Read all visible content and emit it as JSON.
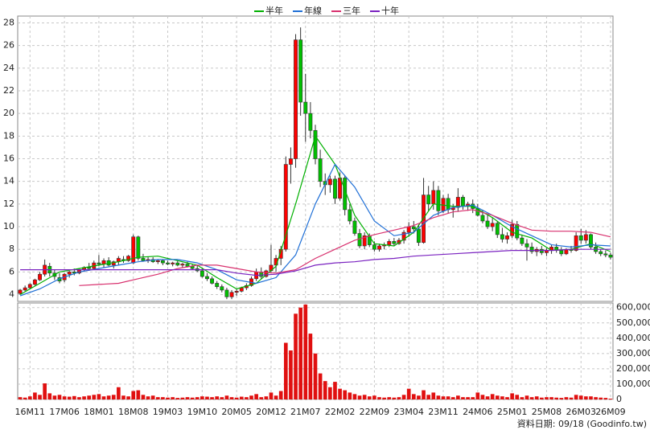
{
  "chart_data": {
    "type": "candlestick",
    "legend_position": "top",
    "grid": true,
    "footnote": "資料日期: 09/18 (Goodinfo.tw)",
    "categories": [
      null,
      null,
      "16M11",
      null,
      null,
      null,
      null,
      null,
      null,
      "17M06",
      null,
      null,
      null,
      null,
      null,
      null,
      "18M01",
      null,
      null,
      null,
      null,
      null,
      null,
      "18M08",
      null,
      null,
      null,
      null,
      null,
      null,
      "19M03",
      null,
      null,
      null,
      null,
      null,
      null,
      "19M10",
      null,
      null,
      null,
      null,
      null,
      null,
      "20M05",
      null,
      null,
      null,
      null,
      null,
      null,
      "20M12",
      null,
      null,
      null,
      null,
      null,
      null,
      "21M07",
      null,
      null,
      null,
      null,
      null,
      null,
      "22M02",
      null,
      null,
      null,
      null,
      null,
      null,
      "22M09",
      null,
      null,
      null,
      null,
      null,
      null,
      "23M04",
      null,
      null,
      null,
      null,
      null,
      null,
      "23M11",
      null,
      null,
      null,
      null,
      null,
      null,
      "24M06",
      null,
      null,
      null,
      null,
      null,
      null,
      "25M01",
      null,
      null,
      null,
      null,
      null,
      null,
      "25M08",
      null,
      null,
      null,
      null,
      null,
      null,
      "26M03",
      null,
      null,
      null,
      null,
      null,
      "26M09"
    ],
    "open": [
      4.1,
      4.4,
      4.6,
      4.9,
      5.3,
      5.8,
      6.5,
      5.9,
      5.5,
      5.3,
      5.8,
      6.0,
      5.9,
      6.2,
      6.4,
      6.3,
      6.8,
      6.7,
      7.0,
      6.6,
      6.9,
      7.1,
      7.0,
      6.8,
      9.1,
      7.2,
      7.0,
      7.1,
      6.9,
      7.0,
      6.8,
      6.7,
      6.8,
      6.6,
      6.7,
      6.5,
      6.3,
      6.1,
      5.6,
      5.4,
      5.0,
      4.7,
      4.4,
      3.8,
      4.2,
      4.3,
      4.6,
      4.8,
      5.4,
      6.0,
      5.6,
      6.1,
      6.6,
      7.2,
      8.0,
      15.5,
      16.0,
      26.5,
      21.0,
      20.0,
      18.5,
      16.0,
      14.0,
      13.7,
      14.2,
      12.5,
      14.3,
      11.5,
      10.5,
      9.4,
      8.3,
      9.2,
      8.4,
      8.0,
      8.3,
      8.4,
      8.7,
      8.5,
      8.8,
      9.5,
      10.0,
      9.8,
      8.6,
      12.8,
      12.0,
      13.2,
      11.4,
      12.5,
      11.5,
      11.7,
      12.6,
      11.8,
      12.0,
      11.6,
      11.0,
      10.5,
      10.0,
      10.3,
      9.3,
      8.9,
      9.2,
      10.2,
      9.0,
      8.5,
      8.2,
      7.8,
      8.0,
      7.7,
      7.9,
      8.2,
      7.9,
      7.6,
      8.0,
      7.9,
      9.2,
      8.8,
      9.3,
      8.2,
      7.8,
      7.6,
      7.5
    ],
    "high": [
      4.5,
      4.8,
      5.0,
      5.4,
      6.0,
      7.1,
      6.8,
      6.2,
      5.9,
      5.9,
      6.1,
      6.3,
      6.3,
      6.5,
      6.8,
      7.0,
      7.5,
      7.2,
      7.3,
      7.0,
      7.4,
      7.4,
      7.5,
      9.3,
      9.2,
      7.6,
      7.3,
      7.3,
      7.1,
      7.1,
      7.0,
      6.9,
      7.0,
      6.8,
      6.9,
      6.7,
      6.6,
      6.3,
      5.9,
      5.6,
      5.2,
      4.9,
      4.6,
      4.4,
      4.5,
      4.7,
      5.0,
      5.6,
      6.3,
      6.4,
      6.2,
      8.4,
      7.5,
      8.3,
      16.2,
      17.0,
      27.0,
      27.6,
      23.5,
      21.0,
      19.0,
      16.8,
      14.7,
      14.5,
      14.5,
      14.8,
      14.5,
      12.0,
      10.8,
      9.8,
      9.5,
      9.4,
      8.7,
      8.5,
      8.6,
      8.9,
      9.0,
      9.0,
      9.7,
      10.4,
      10.5,
      10.2,
      14.3,
      13.6,
      14.0,
      13.6,
      12.8,
      12.9,
      12.0,
      13.4,
      12.8,
      12.2,
      12.4,
      12.0,
      11.5,
      11.0,
      10.8,
      10.5,
      9.9,
      9.5,
      10.6,
      10.5,
      9.3,
      8.9,
      8.6,
      8.2,
      8.3,
      8.1,
      8.4,
      8.5,
      8.2,
      8.1,
      8.3,
      9.5,
      9.8,
      9.7,
      9.4,
      8.6,
      8.0,
      7.9,
      7.7
    ],
    "low": [
      4.0,
      4.3,
      4.5,
      4.8,
      5.2,
      5.6,
      5.6,
      5.3,
      5.0,
      5.1,
      5.5,
      5.7,
      5.8,
      6.0,
      6.1,
      6.2,
      6.5,
      6.4,
      6.5,
      6.3,
      6.6,
      6.8,
      6.9,
      6.7,
      7.0,
      6.9,
      6.8,
      6.8,
      6.7,
      6.6,
      6.6,
      6.5,
      6.5,
      6.4,
      6.4,
      6.2,
      6.0,
      5.5,
      5.2,
      4.9,
      4.5,
      4.2,
      3.6,
      3.6,
      3.9,
      4.2,
      4.4,
      4.7,
      5.2,
      5.4,
      5.5,
      6.0,
      6.0,
      6.6,
      7.8,
      13.8,
      15.2,
      19.8,
      17.5,
      17.8,
      15.5,
      13.5,
      12.8,
      13.0,
      12.0,
      12.3,
      11.0,
      10.2,
      9.2,
      8.1,
      8.0,
      8.2,
      7.8,
      7.8,
      8.0,
      8.2,
      8.3,
      8.4,
      8.5,
      9.1,
      9.4,
      8.3,
      8.5,
      11.4,
      11.5,
      11.0,
      11.2,
      11.2,
      10.8,
      11.3,
      11.5,
      11.4,
      11.2,
      10.9,
      10.3,
      9.8,
      9.6,
      9.0,
      8.6,
      8.5,
      9.0,
      8.8,
      8.3,
      7.0,
      7.6,
      7.4,
      7.5,
      7.4,
      7.6,
      7.7,
      7.4,
      7.5,
      7.7,
      7.8,
      8.5,
      8.5,
      8.0,
      7.6,
      7.4,
      7.3,
      7.1
    ],
    "close": [
      4.4,
      4.6,
      4.9,
      5.3,
      5.8,
      6.6,
      5.9,
      5.6,
      5.2,
      5.8,
      6.0,
      5.9,
      6.2,
      6.4,
      6.3,
      6.8,
      6.7,
      7.0,
      6.6,
      6.9,
      7.2,
      7.0,
      7.4,
      9.1,
      7.2,
      7.0,
      7.1,
      6.9,
      7.0,
      6.8,
      6.7,
      6.8,
      6.6,
      6.7,
      6.5,
      6.3,
      6.1,
      5.6,
      5.4,
      5.0,
      4.7,
      4.4,
      3.8,
      4.2,
      4.3,
      4.6,
      4.8,
      5.4,
      6.0,
      5.6,
      6.1,
      6.6,
      7.2,
      8.0,
      15.5,
      16.0,
      26.5,
      21.0,
      20.0,
      18.5,
      16.0,
      14.0,
      13.7,
      14.2,
      12.5,
      14.3,
      11.5,
      10.5,
      9.4,
      8.3,
      9.2,
      8.4,
      8.0,
      8.3,
      8.4,
      8.7,
      8.5,
      8.8,
      9.5,
      10.0,
      9.8,
      8.6,
      12.8,
      12.0,
      13.2,
      11.4,
      12.5,
      11.5,
      11.7,
      12.6,
      11.8,
      12.0,
      11.6,
      11.0,
      10.5,
      10.0,
      10.3,
      9.3,
      8.9,
      9.2,
      10.2,
      9.0,
      8.5,
      8.2,
      7.8,
      8.0,
      7.7,
      7.9,
      8.2,
      7.9,
      7.6,
      8.0,
      7.9,
      9.2,
      8.8,
      9.3,
      8.2,
      7.8,
      7.6,
      7.5,
      7.3
    ],
    "up_color": "#ff0000",
    "down_color": "#00c000",
    "ylim": [
      3.4,
      28.6
    ],
    "yticks": [
      4,
      6,
      8,
      10,
      12,
      14,
      16,
      18,
      20,
      22,
      24,
      26,
      28
    ],
    "lines": [
      {
        "name": "半年",
        "color": "#00b000",
        "x": [
          0,
          4,
          8,
          12,
          16,
          20,
          24,
          28,
          32,
          36,
          40,
          44,
          48,
          52,
          56,
          60,
          64,
          68,
          72,
          76,
          80,
          84,
          88,
          92,
          96,
          100,
          104,
          108,
          112,
          116,
          120
        ],
        "values": [
          4.0,
          5.0,
          6.0,
          6.3,
          6.6,
          6.9,
          7.3,
          7.4,
          7.0,
          6.6,
          5.5,
          4.5,
          5.0,
          6.5,
          12,
          18,
          15.5,
          11,
          8.5,
          8.3,
          9.5,
          12,
          11.8,
          11.8,
          10.8,
          9.5,
          9.0,
          7.9,
          8.0,
          8.5,
          7.8
        ]
      },
      {
        "name": "年線",
        "color": "#1f6fd6",
        "x": [
          0,
          4,
          8,
          12,
          16,
          20,
          24,
          28,
          32,
          36,
          40,
          44,
          48,
          52,
          56,
          60,
          64,
          68,
          72,
          76,
          80,
          84,
          88,
          92,
          96,
          100,
          104,
          108,
          112,
          116,
          120
        ],
        "values": [
          3.9,
          4.5,
          5.4,
          6.0,
          6.3,
          6.6,
          6.9,
          7.1,
          7.1,
          6.8,
          6.2,
          5.3,
          5.0,
          5.5,
          7.5,
          12,
          15.5,
          13.5,
          10.5,
          9.2,
          9.5,
          11,
          11.7,
          11.9,
          11,
          10,
          9.2,
          8.4,
          8.2,
          8.4,
          8.3
        ]
      },
      {
        "name": "三年",
        "color": "#d8306e",
        "x": [
          0,
          4,
          8,
          12,
          16,
          20,
          24,
          28,
          32,
          36,
          40,
          44,
          48,
          52,
          56,
          60,
          64,
          68,
          72,
          76,
          80,
          84,
          88,
          92,
          96,
          100,
          104,
          108,
          112,
          116,
          120
        ],
        "values": [
          null,
          null,
          null,
          4.8,
          4.9,
          5.0,
          5.4,
          5.8,
          6.3,
          6.6,
          6.6,
          6.3,
          6.0,
          5.9,
          6.2,
          7.2,
          8.0,
          8.8,
          9.3,
          9.7,
          10.1,
          10.8,
          11.3,
          11.5,
          11.0,
          10.3,
          9.7,
          9.6,
          9.6,
          9.5,
          9.1
        ]
      },
      {
        "name": "十年",
        "color": "#7a22c0",
        "x": [
          0,
          4,
          8,
          12,
          16,
          20,
          24,
          28,
          32,
          36,
          40,
          44,
          48,
          52,
          56,
          60,
          64,
          68,
          72,
          76,
          80,
          84,
          88,
          92,
          96,
          100,
          104,
          108,
          112,
          116,
          120
        ],
        "values": [
          6.2,
          6.2,
          6.2,
          6.2,
          6.2,
          6.2,
          6.2,
          6.2,
          6.2,
          6.2,
          6.2,
          5.9,
          5.7,
          5.8,
          6.1,
          6.6,
          6.8,
          6.9,
          7.1,
          7.2,
          7.4,
          7.5,
          7.6,
          7.7,
          7.8,
          7.9,
          7.9,
          7.9,
          8.0,
          8.0,
          8.0
        ]
      }
    ],
    "volume": {
      "color": "#e01010",
      "ylim": [
        0,
        630000
      ],
      "yticks": [
        0,
        {
          "value": 100000,
          "label": "100,000"
        },
        {
          "value": 200000,
          "label": "200,000"
        },
        {
          "value": 300000,
          "label": "300,000"
        },
        {
          "value": 400000,
          "label": "400,000"
        },
        {
          "value": 500000,
          "label": "500,000"
        },
        {
          "value": 600000,
          "label": "600,000"
        }
      ],
      "values": [
        15000,
        12000,
        20000,
        45000,
        30000,
        105000,
        40000,
        25000,
        30000,
        20000,
        18000,
        22000,
        15000,
        20000,
        25000,
        30000,
        35000,
        20000,
        25000,
        30000,
        80000,
        25000,
        20000,
        55000,
        60000,
        30000,
        20000,
        25000,
        15000,
        15000,
        12000,
        15000,
        10000,
        12000,
        15000,
        12000,
        15000,
        20000,
        18000,
        15000,
        20000,
        15000,
        25000,
        15000,
        12000,
        18000,
        15000,
        25000,
        35000,
        15000,
        20000,
        45000,
        25000,
        55000,
        370000,
        320000,
        560000,
        600000,
        620000,
        430000,
        300000,
        170000,
        120000,
        80000,
        115000,
        70000,
        60000,
        45000,
        35000,
        25000,
        30000,
        20000,
        25000,
        15000,
        12000,
        15000,
        12000,
        15000,
        30000,
        70000,
        35000,
        25000,
        60000,
        30000,
        45000,
        25000,
        20000,
        20000,
        15000,
        25000,
        15000,
        15000,
        15000,
        45000,
        30000,
        20000,
        35000,
        25000,
        20000,
        15000,
        40000,
        30000,
        15000,
        25000,
        15000,
        20000,
        12000,
        15000,
        15000,
        12000,
        10000,
        15000,
        12000,
        30000,
        25000,
        20000,
        20000,
        15000,
        12000,
        10000,
        5000
      ]
    }
  }
}
